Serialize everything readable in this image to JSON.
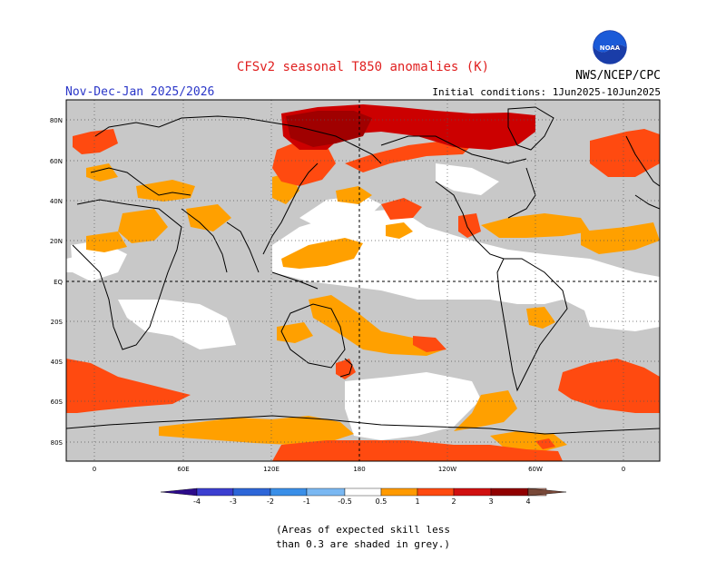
{
  "title": "CFSv2 seasonal T850 anomalies (K)",
  "period": "Nov-Dec-Jan 2025/2026",
  "agency": "NWS/NCEP/CPC",
  "logo_text": "NOAA",
  "initial_conditions": "Initial conditions: 1Jun2025-10Jun2025",
  "lat_labels": [
    "80N",
    "60N",
    "40N",
    "20N",
    "EQ",
    "20S",
    "40S",
    "60S",
    "80S"
  ],
  "lon_labels": [
    "0",
    "60E",
    "120E",
    "180",
    "120W",
    "60W",
    "0"
  ],
  "colorbar": {
    "tick_labels": [
      "-4",
      "-3",
      "-2",
      "-1",
      "-0.5",
      "0.5",
      "1",
      "2",
      "3",
      "4"
    ],
    "colors": [
      "#2c0b8a",
      "#3c3fd0",
      "#2e66d8",
      "#3a8fe8",
      "#7ab8f2",
      "#ffffff",
      "#ff9a00",
      "#ff4a10",
      "#d01010",
      "#900000",
      "#c89080",
      "#784838"
    ]
  },
  "colors": {
    "skill_mask": "#c8c8c8",
    "none": "#ffffff",
    "a05": "#ffa000",
    "a1": "#ff4a10",
    "a2": "#cc0000",
    "a3": "#a00000"
  },
  "note": [
    "(Areas of expected skill less",
    "than 0.3 are shaded in grey.)"
  ]
}
